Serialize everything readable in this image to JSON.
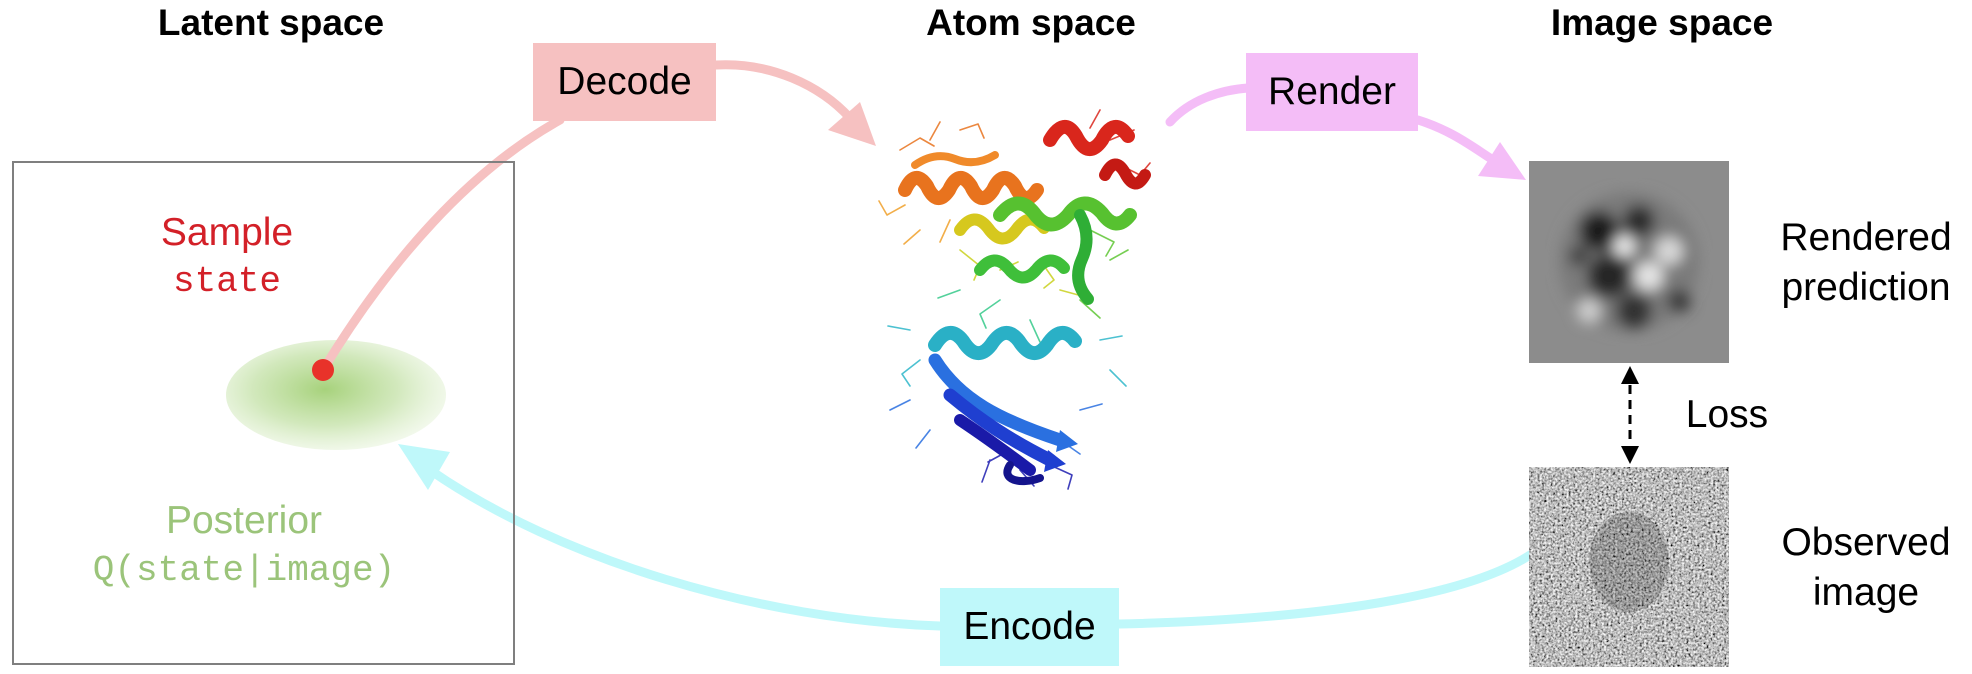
{
  "headings": {
    "latent": "Latent space",
    "atom": "Atom space",
    "image": "Image space"
  },
  "latent": {
    "sample_label": "Sample",
    "state_label": "state",
    "posterior_label": "Posterior",
    "posterior_formula": "Q(state|image)"
  },
  "arrows": {
    "decode": "Decode",
    "render": "Render",
    "encode": "Encode"
  },
  "image_space": {
    "rendered_line1": "Rendered",
    "rendered_line2": "prediction",
    "loss": "Loss",
    "observed_line1": "Observed",
    "observed_line2": "image"
  },
  "colors": {
    "decode": "#f6c1c1",
    "render": "#f4bdf7",
    "encode": "#bff8fa",
    "sample": "#d32028",
    "posterior": "#9bc47a"
  }
}
